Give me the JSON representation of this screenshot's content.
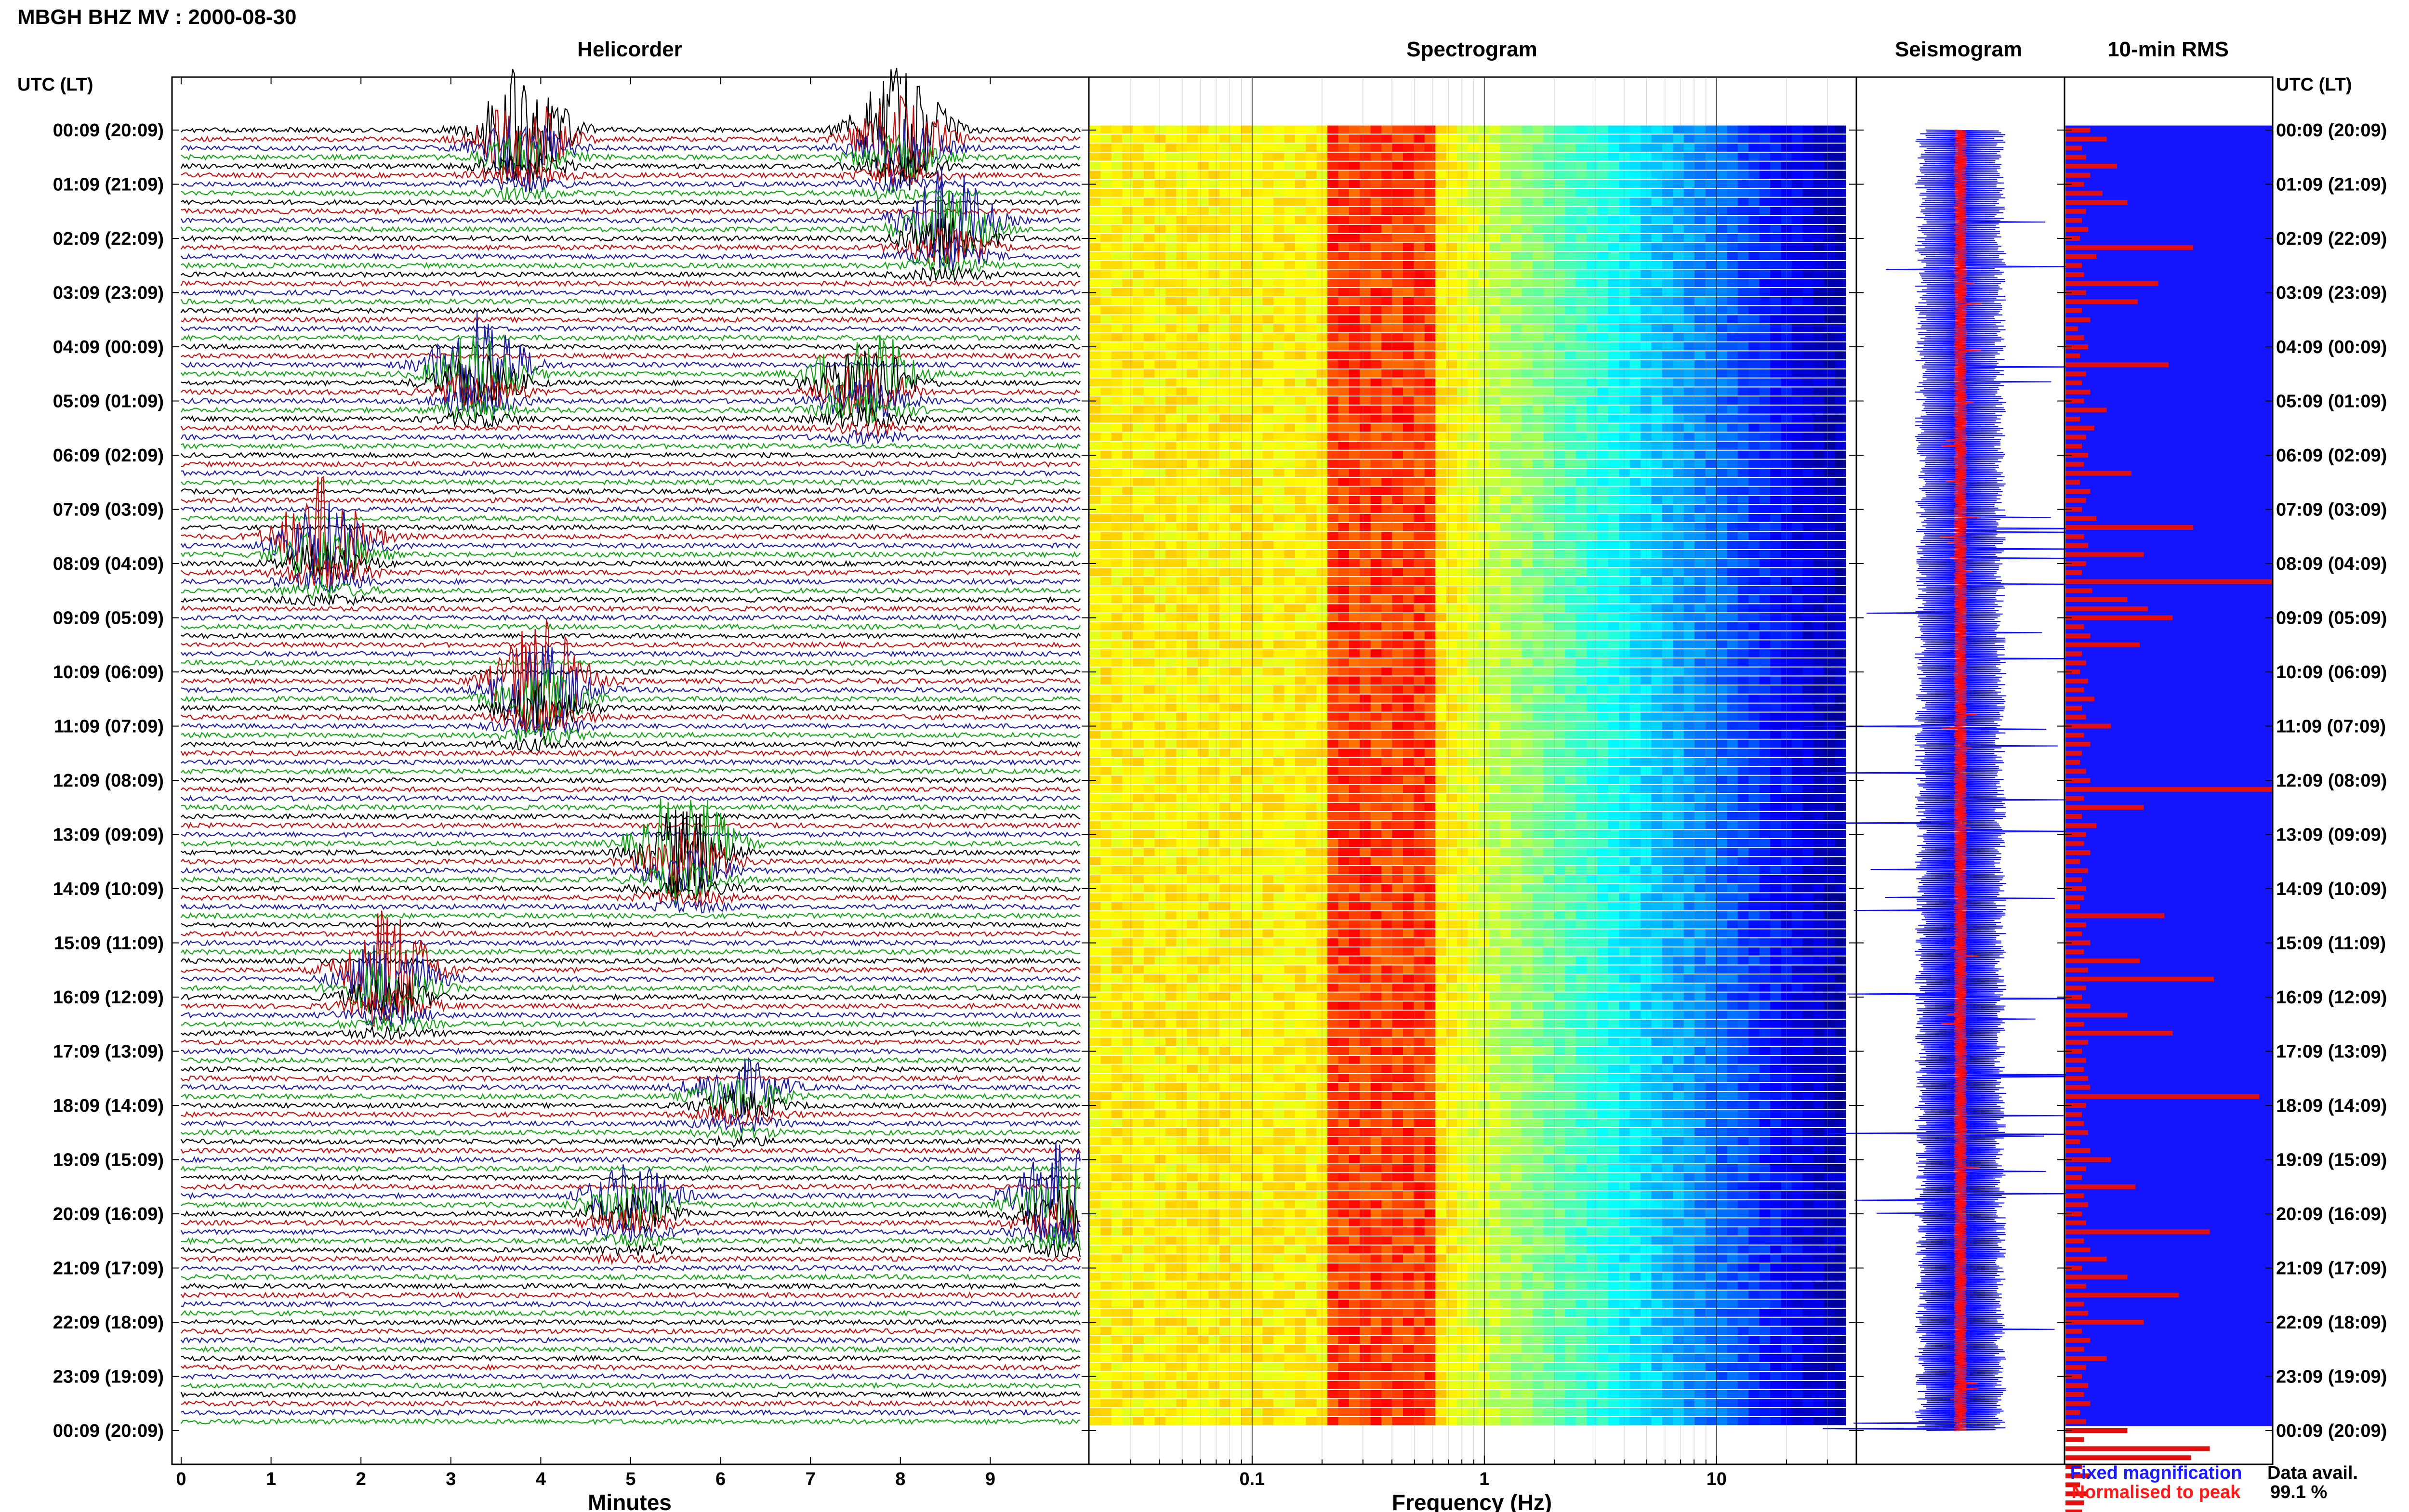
{
  "header": {
    "title": "MBGH BHZ MV : 2000-08-30"
  },
  "panels": {
    "helicorder": "Helicorder",
    "spectrogram": "Spectrogram",
    "seismogram": "Seismogram",
    "rms": "10-min RMS"
  },
  "axes": {
    "utc_label_left": "UTC (LT)",
    "utc_label_right": "UTC (LT)",
    "minutes_label": "Minutes",
    "frequency_label": "Frequency (Hz)"
  },
  "legend": {
    "fixed": "Fixed magnification",
    "normalised": "Normalised to peak",
    "fixed_color": "#1a1aff",
    "normalised_color": "#ff1a1a"
  },
  "data_availability": {
    "label": "Data avail.",
    "value": "99.1 %"
  },
  "colors": {
    "trace_cycle": [
      "#000000",
      "#c01010",
      "#1f1fa0",
      "#17a317"
    ],
    "seismogram_fixed": "#1010ff",
    "seismogram_norm": "#ff1010",
    "rms_background": "#1414ff",
    "rms_bars": "#e01010"
  },
  "chart_data": [
    {
      "type": "line",
      "name": "Helicorder",
      "xlabel": "Minutes",
      "xlim": [
        0,
        10
      ],
      "x_ticks": [
        "0",
        "1",
        "2",
        "3",
        "4",
        "5",
        "6",
        "7",
        "8",
        "9"
      ],
      "y_ticks": [
        "00:09 (20:09)",
        "01:09 (21:09)",
        "02:09 (22:09)",
        "03:09 (23:09)",
        "04:09 (00:09)",
        "05:09 (01:09)",
        "06:09 (02:09)",
        "07:09 (03:09)",
        "08:09 (04:09)",
        "09:09 (05:09)",
        "10:09 (06:09)",
        "11:09 (07:09)",
        "12:09 (08:09)",
        "13:09 (09:09)",
        "14:09 (10:09)",
        "15:09 (11:09)",
        "16:09 (12:09)",
        "17:09 (13:09)",
        "18:09 (14:09)",
        "19:09 (15:09)",
        "20:09 (16:09)",
        "21:09 (17:09)",
        "22:09 (18:09)",
        "23:09 (19:09)",
        "00:09 (20:09)"
      ],
      "traces_per_hour": 6,
      "events_approx": [
        {
          "start_hour": 0.0,
          "minute": 3.8,
          "amplitude": "large"
        },
        {
          "start_hour": 0.0,
          "minute": 8.0,
          "amplitude": "large"
        },
        {
          "start_hour": 1.6,
          "minute": 8.5,
          "amplitude": "large"
        },
        {
          "start_hour": 4.3,
          "minute": 3.3,
          "amplitude": "large"
        },
        {
          "start_hour": 4.5,
          "minute": 7.6,
          "amplitude": "large"
        },
        {
          "start_hour": 7.5,
          "minute": 1.6,
          "amplitude": "large"
        },
        {
          "start_hour": 10.2,
          "minute": 4.0,
          "amplitude": "large"
        },
        {
          "start_hour": 13.2,
          "minute": 5.6,
          "amplitude": "large"
        },
        {
          "start_hour": 15.5,
          "minute": 2.3,
          "amplitude": "large"
        },
        {
          "start_hour": 17.6,
          "minute": 6.2,
          "amplitude": "medium"
        },
        {
          "start_hour": 19.7,
          "minute": 5.0,
          "amplitude": "medium"
        },
        {
          "start_hour": 19.6,
          "minute": 9.8,
          "amplitude": "large"
        }
      ]
    },
    {
      "type": "heatmap",
      "name": "Spectrogram",
      "xlabel": "Frequency (Hz)",
      "x_scale": "log",
      "xlim": [
        0.02,
        40
      ],
      "x_ticks": [
        "0.1",
        "1",
        "10"
      ],
      "rows_per_hour": 6,
      "colormap": "jet",
      "peak_band_hz": [
        0.2,
        0.6
      ]
    },
    {
      "type": "line",
      "name": "Seismogram",
      "series_legend": [
        "Fixed magnification",
        "Normalised to peak"
      ]
    },
    {
      "type": "bar",
      "name": "10-min RMS",
      "orientation": "horizontal",
      "rows_per_hour": 6,
      "values_relative": [
        0.12,
        0.2,
        0.08,
        0.1,
        0.25,
        0.12,
        0.09,
        0.18,
        0.3,
        0.1,
        0.08,
        0.11,
        0.07,
        0.62,
        0.15,
        0.08,
        0.09,
        0.45,
        0.1,
        0.35,
        0.08,
        0.12,
        0.06,
        0.09,
        0.11,
        0.07,
        0.5,
        0.1,
        0.08,
        0.12,
        0.09,
        0.2,
        0.07,
        0.14,
        0.1,
        0.08,
        0.11,
        0.09,
        0.32,
        0.07,
        0.12,
        0.1,
        0.08,
        0.15,
        0.62,
        0.09,
        0.11,
        0.38,
        0.1,
        0.08,
        1.0,
        0.13,
        0.3,
        0.4,
        0.52,
        0.09,
        0.12,
        0.36,
        0.08,
        0.1,
        0.07,
        0.11,
        0.09,
        0.14,
        0.08,
        0.1,
        0.22,
        0.09,
        0.12,
        0.08,
        0.07,
        0.1,
        0.12,
        1.0,
        0.09,
        0.38,
        0.08,
        0.15,
        0.1,
        0.09,
        0.12,
        0.07,
        0.11,
        0.08,
        0.1,
        0.09,
        0.07,
        0.48,
        0.1,
        0.08,
        0.12,
        0.09,
        0.36,
        0.11,
        0.72,
        0.1,
        0.08,
        0.12,
        0.3,
        0.09,
        0.52,
        0.11,
        0.08,
        0.1,
        0.09,
        0.11,
        0.12,
        0.94,
        0.1,
        0.08,
        0.09,
        0.11,
        0.07,
        0.12,
        0.22,
        0.1,
        0.08,
        0.34,
        0.09,
        0.11,
        0.08,
        0.1,
        0.7,
        0.09,
        0.12,
        0.2,
        0.08,
        0.3,
        0.1,
        0.55,
        0.09,
        0.11,
        0.38,
        0.08,
        0.12,
        0.09,
        0.2,
        0.1,
        0.08,
        0.11,
        0.09,
        0.12,
        0.07,
        0.1,
        0.3,
        0.09,
        0.7,
        0.61,
        0.08,
        0.12,
        0.07,
        0.11,
        0.09,
        0.08,
        0.1,
        0.07
      ]
    }
  ]
}
